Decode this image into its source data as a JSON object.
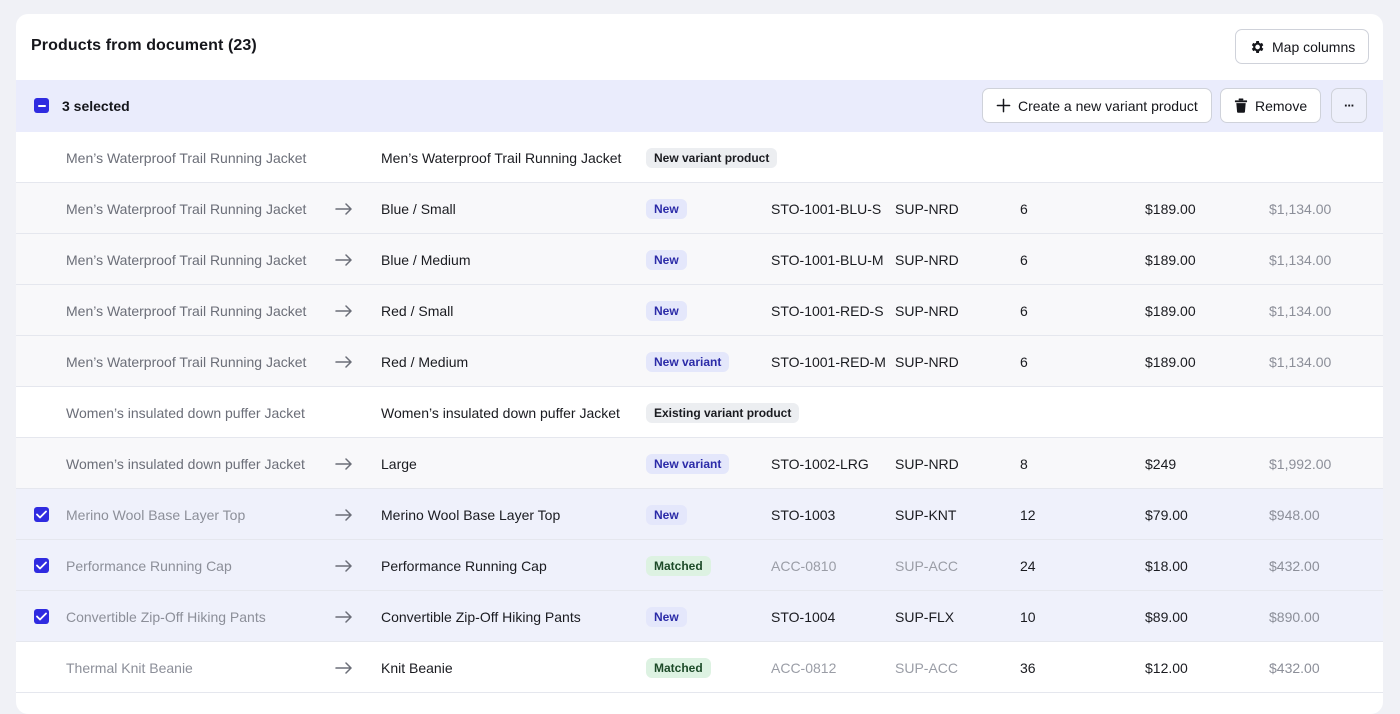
{
  "header": {
    "title": "Products from document (23)",
    "map_columns_label": "Map columns"
  },
  "selection_bar": {
    "count_label": "3 selected",
    "create_variant_label": "Create a new variant product",
    "remove_label": "Remove",
    "more_label": "···"
  },
  "rows": [
    {
      "kind": "parent",
      "source": "Men’s Waterproof Trail Running Jacket",
      "arrow": "",
      "name": "Men’s Waterproof Trail Running Jacket",
      "badge": "New variant product",
      "badge_style": "gray",
      "sku": "",
      "supplier": "",
      "qty": "",
      "price": "",
      "total": "",
      "selected": false,
      "muted_codes": false
    },
    {
      "kind": "variant",
      "source": "Men’s Waterproof Trail Running Jacket",
      "arrow": "→",
      "name": "Blue / Small",
      "badge": "New",
      "badge_style": "blue",
      "sku": "STO-1001-BLU-S",
      "supplier": "SUP-NRD",
      "qty": "6",
      "price": "$189.00",
      "total": "$1,134.00",
      "selected": false,
      "muted_codes": false
    },
    {
      "kind": "variant",
      "source": "Men’s Waterproof Trail Running Jacket",
      "arrow": "→",
      "name": "Blue / Medium",
      "badge": "New",
      "badge_style": "blue",
      "sku": "STO-1001-BLU-M",
      "supplier": "SUP-NRD",
      "qty": "6",
      "price": "$189.00",
      "total": "$1,134.00",
      "selected": false,
      "muted_codes": false
    },
    {
      "kind": "variant",
      "source": "Men’s Waterproof Trail Running Jacket",
      "arrow": "→",
      "name": "Red / Small",
      "badge": "New",
      "badge_style": "blue",
      "sku": "STO-1001-RED-S",
      "supplier": "SUP-NRD",
      "qty": "6",
      "price": "$189.00",
      "total": "$1,134.00",
      "selected": false,
      "muted_codes": false
    },
    {
      "kind": "variant",
      "source": "Men’s Waterproof Trail Running Jacket",
      "arrow": "→",
      "name": "Red / Medium",
      "badge": "New variant",
      "badge_style": "blue",
      "sku": "STO-1001-RED-M",
      "supplier": "SUP-NRD",
      "qty": "6",
      "price": "$189.00",
      "total": "$1,134.00",
      "selected": false,
      "muted_codes": false
    },
    {
      "kind": "parent",
      "source": "Women’s insulated down puffer Jacket",
      "arrow": "",
      "name": "Women’s insulated down puffer Jacket",
      "badge": "Existing variant product",
      "badge_style": "gray",
      "sku": "",
      "supplier": "",
      "qty": "",
      "price": "",
      "total": "",
      "selected": false,
      "muted_codes": false
    },
    {
      "kind": "variant",
      "source": "Women’s insulated down puffer Jacket",
      "arrow": "→",
      "name": "Large",
      "badge": "New variant",
      "badge_style": "blue",
      "sku": "STO-1002-LRG",
      "supplier": "SUP-NRD",
      "qty": "8",
      "price": "$249",
      "total": "$1,992.00",
      "selected": false,
      "muted_codes": false
    },
    {
      "kind": "selected",
      "source": "Merino Wool Base Layer Top",
      "arrow": "→",
      "name": "Merino Wool Base Layer Top",
      "badge": "New",
      "badge_style": "blue",
      "sku": "STO-1003",
      "supplier": "SUP-KNT",
      "qty": "12",
      "price": "$79.00",
      "total": "$948.00",
      "selected": true,
      "muted_codes": false
    },
    {
      "kind": "selected",
      "source": "Performance Running Cap",
      "arrow": "→",
      "name": "Performance Running Cap",
      "badge": "Matched",
      "badge_style": "green",
      "sku": "ACC-0810",
      "supplier": "SUP-ACC",
      "qty": "24",
      "price": "$18.00",
      "total": "$432.00",
      "selected": true,
      "muted_codes": true
    },
    {
      "kind": "selected",
      "source": "Convertible Zip-Off Hiking Pants",
      "arrow": "→",
      "name": "Convertible Zip-Off Hiking Pants",
      "badge": "New",
      "badge_style": "blue",
      "sku": "STO-1004",
      "supplier": "SUP-FLX",
      "qty": "10",
      "price": "$89.00",
      "total": "$890.00",
      "selected": true,
      "muted_codes": false
    },
    {
      "kind": "plain",
      "source": "Thermal Knit Beanie",
      "arrow": "→",
      "name": "Knit Beanie",
      "badge": "Matched",
      "badge_style": "green",
      "sku": "ACC-0812",
      "supplier": "SUP-ACC",
      "qty": "36",
      "price": "$12.00",
      "total": "$432.00",
      "selected": false,
      "muted_codes": true
    }
  ],
  "colors": {
    "accent": "#2f2be0",
    "selection_bar_bg": "#eaecfc",
    "selected_row_bg": "#eff1fb",
    "badge_blue_bg": "#e4e7fb",
    "badge_green_bg": "#ddf2e2",
    "badge_gray_bg": "#eceef1"
  },
  "icons": {
    "map_columns": "gear-icon",
    "create_variant": "plus-icon",
    "remove": "trash-icon",
    "more": "more-horizontal-icon",
    "row_arrow": "arrow-right-icon",
    "checkbox": "checkbox-checked-icon",
    "bulk_checkbox": "checkbox-indeterminate-icon"
  }
}
